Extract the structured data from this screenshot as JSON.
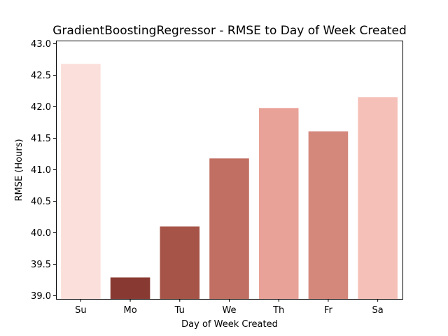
{
  "chart_data": {
    "type": "bar",
    "title": "GradientBoostingRegressor - RMSE to Day of Week Created",
    "xlabel": "Day of Week Created",
    "ylabel": "RMSE (Hours)",
    "categories": [
      "Su",
      "Mo",
      "Tu",
      "We",
      "Th",
      "Fr",
      "Sa"
    ],
    "values": [
      42.68,
      39.29,
      40.1,
      41.18,
      41.98,
      41.61,
      42.15
    ],
    "colors": [
      "#fbdfda",
      "#883a32",
      "#a65448",
      "#c06f62",
      "#e8a298",
      "#d4887b",
      "#f5c0b7"
    ],
    "ylim": [
      38.95,
      43.05
    ],
    "yticks": [
      "39.0",
      "39.5",
      "40.0",
      "40.5",
      "41.0",
      "41.5",
      "42.0",
      "42.5",
      "43.0"
    ],
    "grid": false
  }
}
